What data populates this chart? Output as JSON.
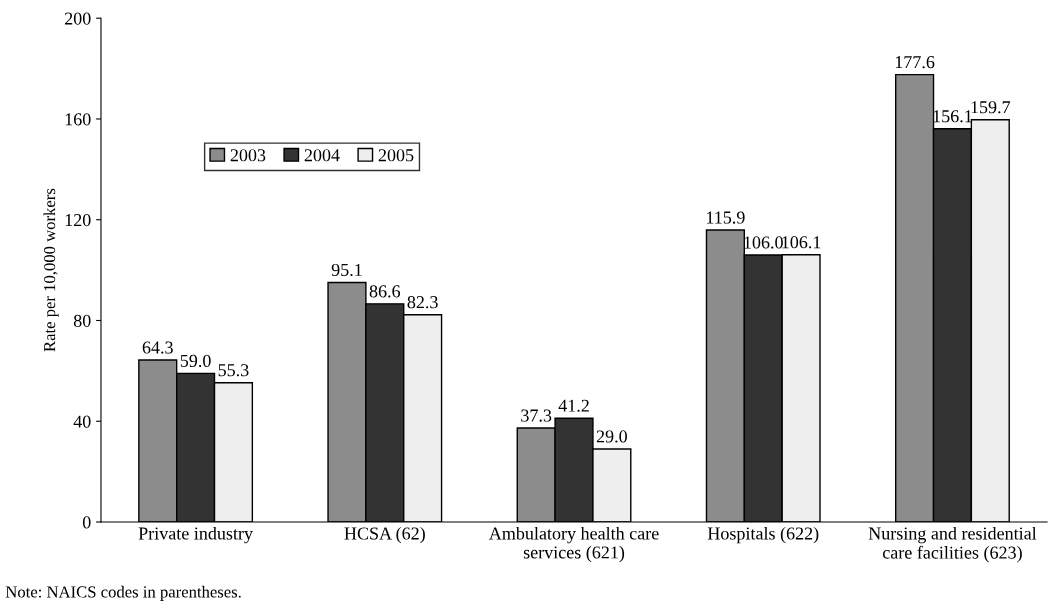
{
  "chart_data": {
    "type": "bar",
    "ylabel": "Rate per 10,000 workers",
    "categories": [
      "Private industry",
      "HCSA (62)",
      "Ambulatory health care\nservices (621)",
      "Hospitals (622)",
      "Nursing and residential\ncare facilities (623)"
    ],
    "series": [
      {
        "name": "2003",
        "color": "#8c8c8c",
        "values": [
          64.3,
          95.1,
          37.3,
          115.9,
          177.6
        ]
      },
      {
        "name": "2004",
        "color": "#333333",
        "values": [
          59.0,
          86.6,
          41.2,
          106.0,
          156.1
        ]
      },
      {
        "name": "2005",
        "color": "#eeeeee",
        "values": [
          55.3,
          82.3,
          29.0,
          106.1,
          159.7
        ]
      }
    ],
    "value_labels": [
      [
        "64.3",
        "95.1",
        "37.3",
        "115.9",
        "177.6"
      ],
      [
        "59.0",
        "86.6",
        "41.2",
        "106.0",
        "156.1"
      ],
      [
        "55.3",
        "82.3",
        "29.0",
        "106.1",
        "159.7"
      ]
    ],
    "ylim": [
      0,
      200
    ],
    "yticks": [
      0,
      40,
      80,
      120,
      160,
      200
    ],
    "grid": false,
    "legend": "top left",
    "annotations": [
      "Note: NAICS codes in parentheses."
    ]
  }
}
